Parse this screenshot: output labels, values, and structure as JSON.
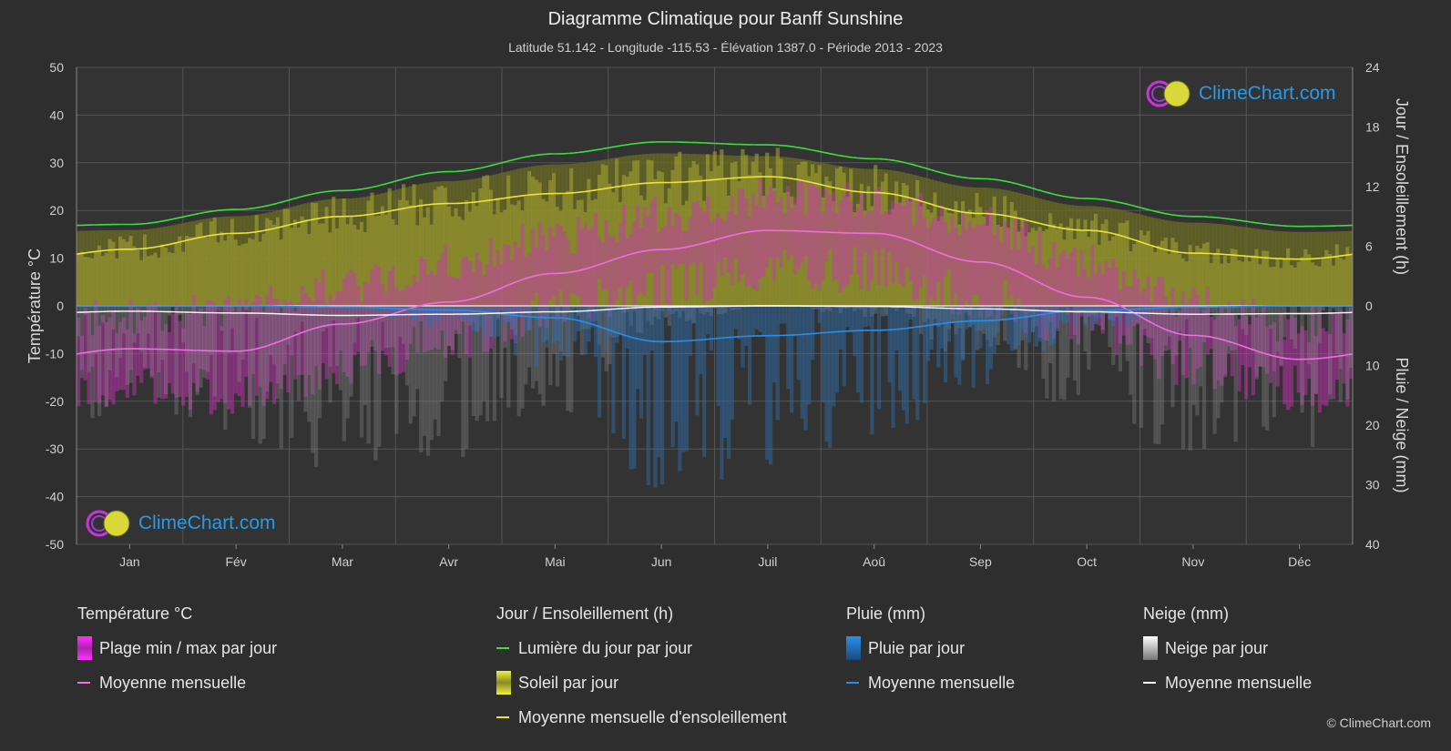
{
  "title": "Diagramme Climatique pour Banff Sunshine",
  "subtitle": "Latitude 51.142 - Longitude -115.53 - Élévation 1387.0 - Période 2013 - 2023",
  "watermark": "ClimeChart.com",
  "copyright": "© ClimeChart.com",
  "colors": {
    "background": "#2e2e2e",
    "daylight": "#3ddc3d",
    "sunshine_avg": "#e6e63a",
    "temp_avg": "#ee6ee0",
    "rain_avg": "#2a8ee8",
    "snow_avg": "#ffffff",
    "temp_range": "#cc33bb",
    "sunshine_fill": "#a9a930",
    "rain_bar": "#2f6fb0",
    "snow_bar": "#8a8a8a",
    "logo_text": "#2a9ae6"
  },
  "legend": {
    "temperature": {
      "title": "Température °C",
      "items": [
        "Plage min / max par jour",
        "Moyenne mensuelle"
      ]
    },
    "sun": {
      "title": "Jour / Ensoleillement (h)",
      "items": [
        "Lumière du jour par jour",
        "Soleil par jour",
        "Moyenne mensuelle d'ensoleillement"
      ]
    },
    "rain": {
      "title": "Pluie (mm)",
      "items": [
        "Pluie par jour",
        "Moyenne mensuelle"
      ]
    },
    "snow": {
      "title": "Neige (mm)",
      "items": [
        "Neige par jour",
        "Moyenne mensuelle"
      ]
    }
  },
  "chart_data": {
    "type": "line",
    "categories": [
      "Jan",
      "Fév",
      "Mar",
      "Avr",
      "Mai",
      "Jun",
      "Juil",
      "Aoû",
      "Sep",
      "Oct",
      "Nov",
      "Déc"
    ],
    "y_left": {
      "label": "Température °C",
      "range": [
        -50,
        50
      ],
      "ticks": [
        50,
        40,
        30,
        20,
        10,
        0,
        -10,
        -20,
        -30,
        -40,
        -50
      ]
    },
    "y_right_top": {
      "label": "Jour / Ensoleillement (h)",
      "range": [
        0,
        24
      ],
      "ticks": [
        24,
        18,
        12,
        6,
        0
      ]
    },
    "y_right_bottom": {
      "label": "Pluie / Neige (mm)",
      "range": [
        0,
        40
      ],
      "ticks": [
        10,
        20,
        30,
        40
      ]
    },
    "grid": true,
    "series": [
      {
        "name": "Lumière du jour par jour",
        "axis": "hours",
        "values": [
          8.2,
          9.7,
          11.6,
          13.5,
          15.3,
          16.5,
          16.2,
          14.8,
          12.8,
          10.8,
          9.0,
          8.0
        ]
      },
      {
        "name": "Moyenne mensuelle d'ensoleillement",
        "axis": "hours",
        "values": [
          5.7,
          7.3,
          9.0,
          10.3,
          11.3,
          12.4,
          13.0,
          11.4,
          9.3,
          7.6,
          5.3,
          4.7
        ]
      },
      {
        "name": "Moyenne mensuelle",
        "group": "temperature",
        "axis": "temp",
        "values": [
          -9.0,
          -9.5,
          -3.8,
          0.8,
          6.8,
          11.8,
          15.8,
          15.2,
          9.2,
          1.8,
          -6.2,
          -11.2
        ]
      },
      {
        "name": "Moyenne mensuelle",
        "group": "rain",
        "axis": "mm",
        "values": [
          0.0,
          0.0,
          0.2,
          0.7,
          2.0,
          6.0,
          5.0,
          4.1,
          2.5,
          0.8,
          0.2,
          0.0
        ]
      },
      {
        "name": "Moyenne mensuelle",
        "group": "snow",
        "axis": "mm",
        "values": [
          0.9,
          1.2,
          1.6,
          1.4,
          1.0,
          0.2,
          0.0,
          0.1,
          0.5,
          1.0,
          1.4,
          1.3
        ]
      }
    ],
    "temp_daily_range_monthly": {
      "max": [
        -2.0,
        -0.5,
        4.5,
        9.0,
        14.5,
        19.0,
        23.0,
        22.5,
        17.0,
        9.0,
        0.5,
        -4.0
      ],
      "min": [
        -17.0,
        -18.5,
        -12.5,
        -7.0,
        -1.0,
        4.0,
        8.0,
        7.5,
        1.5,
        -5.0,
        -12.0,
        -17.5
      ]
    }
  }
}
